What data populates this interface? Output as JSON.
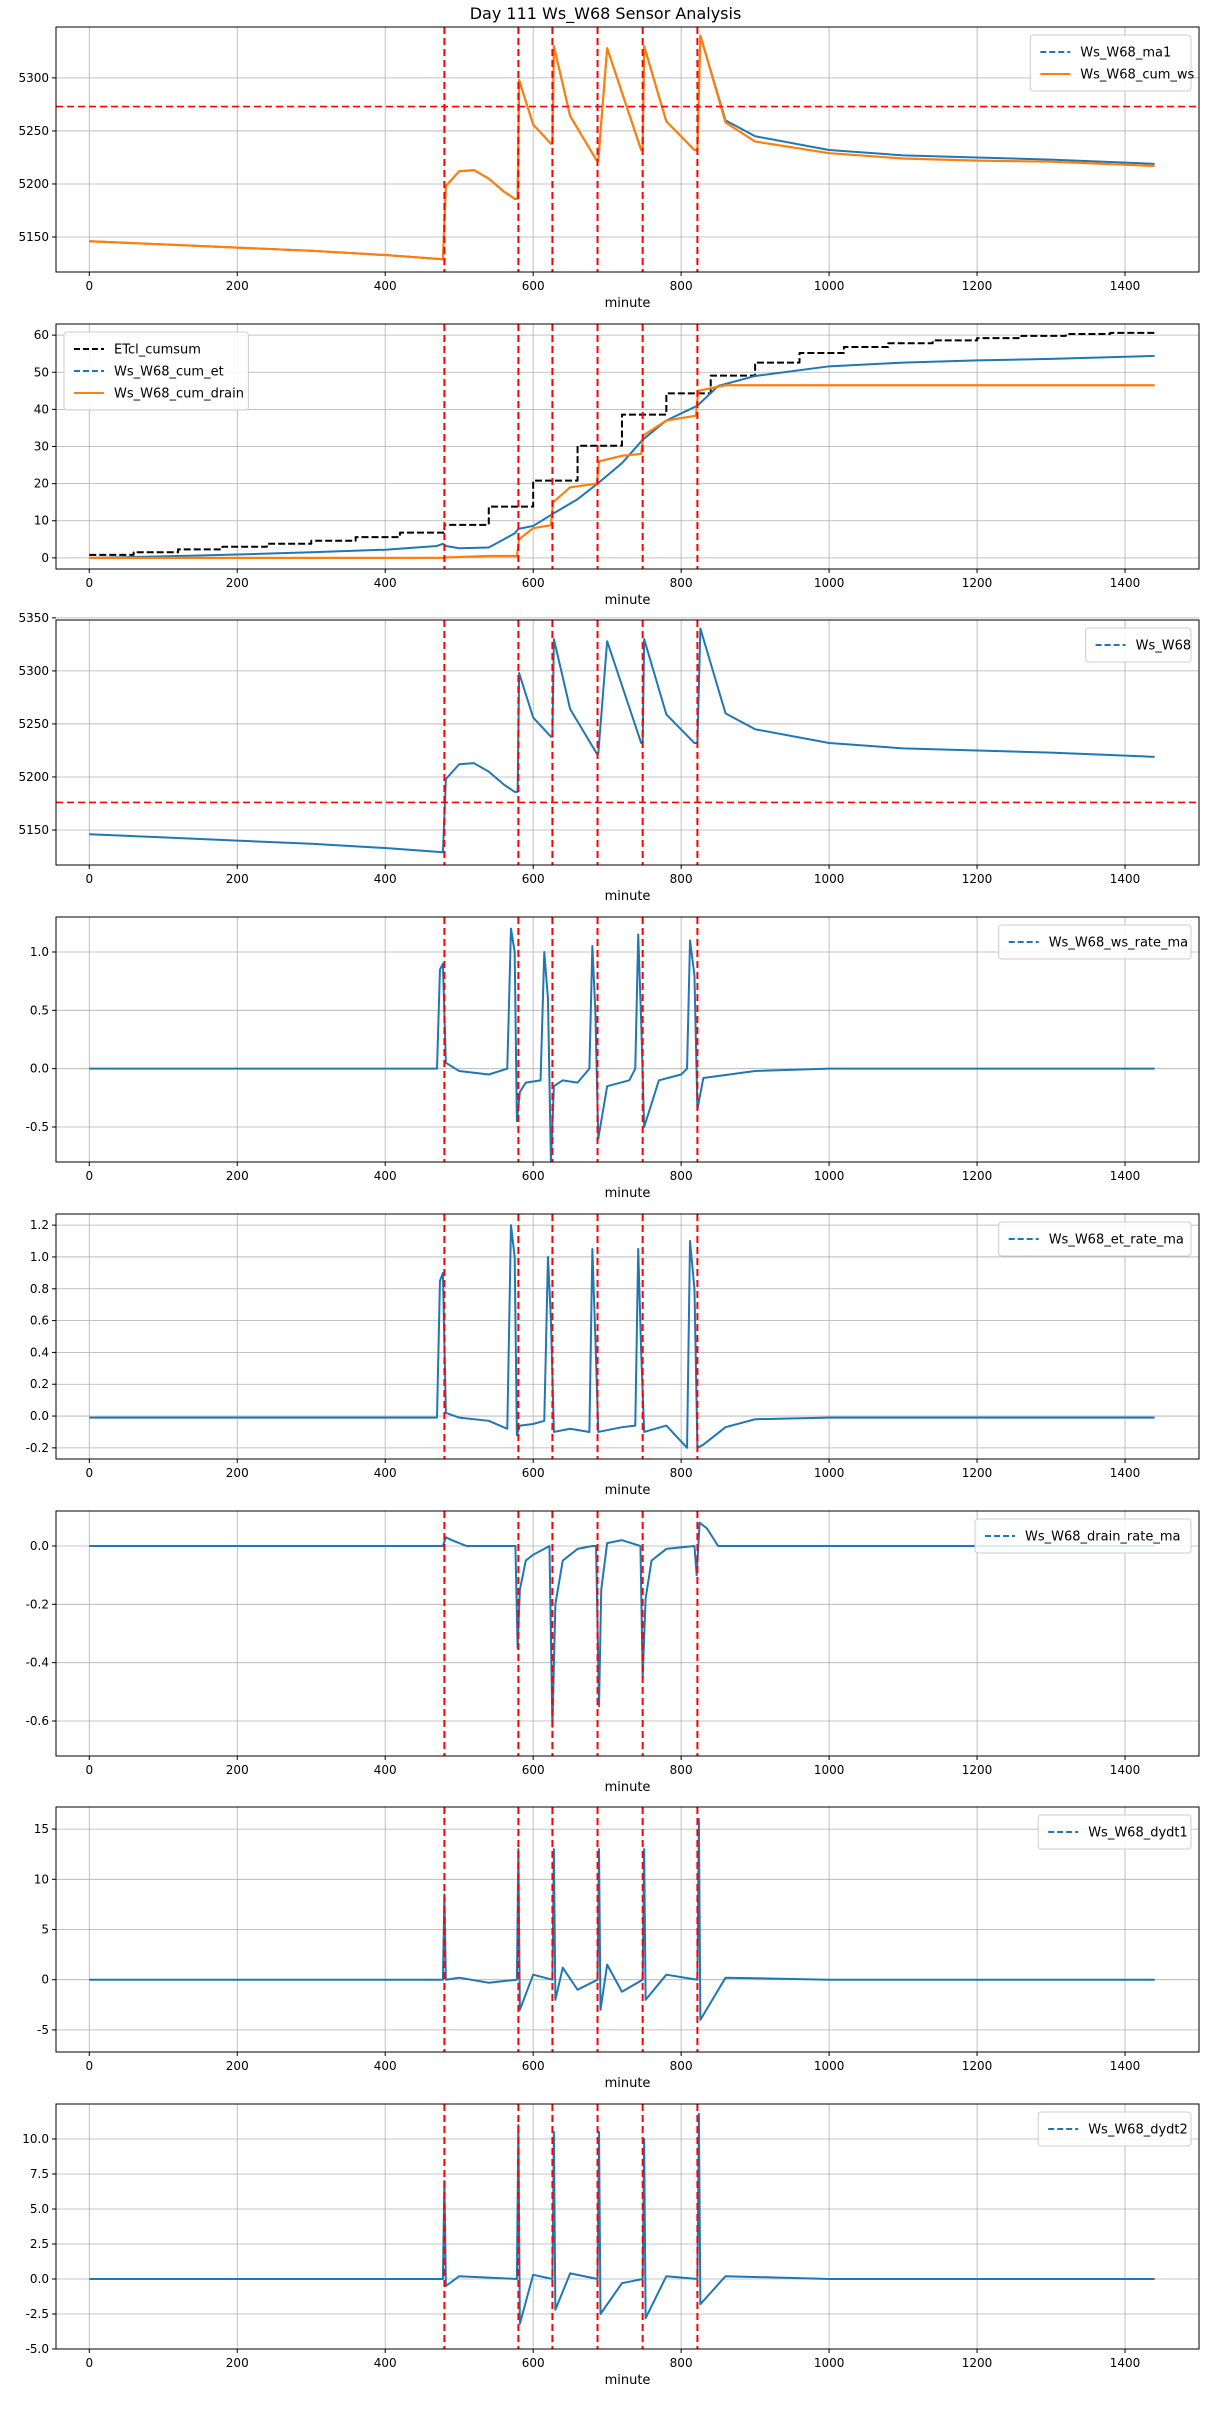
{
  "title": "Day 111 Ws_W68 Sensor Analysis",
  "colors": {
    "blue": "#1f77b4",
    "orange": "#ff7f0e",
    "black": "#000000",
    "red": "#ff0000",
    "grid": "#b0b0b0"
  },
  "event_minutes": [
    480,
    580,
    626,
    687,
    748,
    822
  ],
  "chart_data": [
    {
      "type": "line",
      "title": "",
      "xlabel": "minute",
      "ylabel": "",
      "xlim": [
        -45,
        1500
      ],
      "ylim": [
        5117,
        5348
      ],
      "xticks": [
        0,
        200,
        400,
        600,
        800,
        1000,
        1200,
        1400
      ],
      "yticks": [
        5150,
        5200,
        5250,
        5300
      ],
      "ytick_labels": [
        "5150",
        "5200",
        "5250",
        "5300"
      ],
      "legend_position": "top-right",
      "hline": 5273,
      "series": [
        {
          "name": "Ws_W68_ma1",
          "color": "#1f77b4",
          "style": "dashed",
          "x": [
            0,
            100,
            200,
            300,
            400,
            478,
            482,
            500,
            520,
            540,
            560,
            575,
            579,
            581,
            600,
            624,
            626,
            628,
            650,
            686,
            688,
            700,
            746,
            748,
            750,
            780,
            818,
            822,
            826,
            860,
            900,
            1000,
            1100,
            1200,
            1300,
            1440
          ],
          "y": [
            5146,
            5143,
            5140,
            5137,
            5133,
            5129,
            5198,
            5212,
            5213,
            5205,
            5193,
            5186,
            5186,
            5298,
            5256,
            5238,
            5238,
            5330,
            5264,
            5222,
            5222,
            5328,
            5232,
            5232,
            5330,
            5259,
            5232,
            5232,
            5340,
            5260,
            5245,
            5232,
            5227,
            5225,
            5223,
            5219
          ]
        },
        {
          "name": "Ws_W68_cum_ws",
          "color": "#ff7f0e",
          "style": "solid",
          "x": [
            0,
            100,
            200,
            300,
            400,
            478,
            482,
            500,
            520,
            540,
            560,
            575,
            579,
            581,
            600,
            624,
            626,
            628,
            650,
            686,
            688,
            700,
            746,
            748,
            750,
            780,
            818,
            822,
            826,
            860,
            900,
            1000,
            1100,
            1200,
            1300,
            1440
          ],
          "y": [
            5146,
            5143,
            5140,
            5137,
            5133,
            5129,
            5198,
            5212,
            5213,
            5205,
            5193,
            5186,
            5186,
            5298,
            5256,
            5238,
            5238,
            5330,
            5264,
            5222,
            5222,
            5328,
            5232,
            5232,
            5330,
            5259,
            5232,
            5232,
            5340,
            5258,
            5240,
            5229,
            5224,
            5222,
            5221,
            5217
          ]
        }
      ]
    },
    {
      "type": "line",
      "title": "",
      "xlabel": "minute",
      "ylabel": "",
      "xlim": [
        -45,
        1500
      ],
      "ylim": [
        -3,
        63
      ],
      "xticks": [
        0,
        200,
        400,
        600,
        800,
        1000,
        1200,
        1400
      ],
      "yticks": [
        0,
        10,
        20,
        30,
        40,
        50,
        60
      ],
      "ytick_labels": [
        "0",
        "10",
        "20",
        "30",
        "40",
        "50",
        "60"
      ],
      "legend_position": "top-left",
      "step_series": "ETcl_cumsum",
      "series": [
        {
          "name": "ETcl_cumsum",
          "color": "#000000",
          "style": "dashed",
          "x": [
            0,
            60,
            120,
            180,
            240,
            300,
            360,
            420,
            480,
            540,
            600,
            660,
            720,
            780,
            840,
            900,
            960,
            1020,
            1080,
            1140,
            1200,
            1260,
            1320,
            1380,
            1440
          ],
          "y": [
            0.8,
            1.5,
            2.3,
            3.0,
            3.8,
            4.6,
            5.6,
            6.8,
            8.9,
            13.8,
            20.8,
            30.2,
            38.6,
            44.3,
            49.1,
            52.6,
            55.2,
            56.8,
            57.8,
            58.6,
            59.2,
            59.8,
            60.3,
            60.6,
            61.0
          ]
        },
        {
          "name": "Ws_W68_cum_et",
          "color": "#1f77b4",
          "style": "dashed",
          "x": [
            0,
            100,
            200,
            300,
            400,
            470,
            478,
            482,
            500,
            540,
            575,
            580,
            600,
            626,
            660,
            687,
            720,
            748,
            780,
            822,
            850,
            900,
            1000,
            1100,
            1200,
            1300,
            1440
          ],
          "y": [
            0,
            0.4,
            0.9,
            1.5,
            2.2,
            3.2,
            3.8,
            3.2,
            2.6,
            2.8,
            6.6,
            7.8,
            8.6,
            11.8,
            15.8,
            20.0,
            25.5,
            31.8,
            37.0,
            41.0,
            46.3,
            49.0,
            51.6,
            52.6,
            53.2,
            53.6,
            54.4
          ]
        },
        {
          "name": "Ws_W68_cum_drain",
          "color": "#ff7f0e",
          "style": "solid",
          "x": [
            0,
            478,
            480,
            540,
            578,
            581,
            600,
            624,
            627,
            650,
            686,
            689,
            720,
            746,
            749,
            780,
            820,
            823,
            860,
            1000,
            1200,
            1440
          ],
          "y": [
            0,
            0,
            0.1,
            0.5,
            0.5,
            5.0,
            8.0,
            8.8,
            15.0,
            19.0,
            20.0,
            26.0,
            27.5,
            28.0,
            33.0,
            37.0,
            38.3,
            45.0,
            46.5,
            46.5,
            46.5,
            46.5
          ]
        }
      ]
    },
    {
      "type": "line",
      "title": "",
      "xlabel": "minute",
      "ylabel": "",
      "xlim": [
        -45,
        1500
      ],
      "ylim": [
        5117,
        5348
      ],
      "xticks": [
        0,
        200,
        400,
        600,
        800,
        1000,
        1200,
        1400
      ],
      "yticks": [
        5150,
        5200,
        5250,
        5300,
        5350
      ],
      "ytick_labels": [
        "5150",
        "5200",
        "5250",
        "5300",
        "5350"
      ],
      "legend_position": "top-right",
      "hline": 5176,
      "series": [
        {
          "name": "Ws_W68",
          "color": "#1f77b4",
          "style": "dashed",
          "x": [
            0,
            100,
            200,
            300,
            400,
            478,
            482,
            500,
            520,
            540,
            560,
            575,
            579,
            581,
            600,
            624,
            626,
            628,
            650,
            686,
            688,
            700,
            746,
            748,
            750,
            780,
            818,
            822,
            826,
            860,
            900,
            1000,
            1100,
            1200,
            1300,
            1440
          ],
          "y": [
            5146,
            5143,
            5140,
            5137,
            5133,
            5129,
            5198,
            5212,
            5213,
            5205,
            5193,
            5186,
            5186,
            5298,
            5256,
            5238,
            5238,
            5330,
            5264,
            5222,
            5222,
            5328,
            5232,
            5232,
            5330,
            5259,
            5232,
            5232,
            5340,
            5260,
            5245,
            5232,
            5227,
            5225,
            5223,
            5219
          ]
        }
      ]
    },
    {
      "type": "line",
      "title": "",
      "xlabel": "minute",
      "ylabel": "",
      "xlim": [
        -45,
        1500
      ],
      "ylim": [
        -0.8,
        1.3
      ],
      "xticks": [
        0,
        200,
        400,
        600,
        800,
        1000,
        1200,
        1400
      ],
      "yticks": [
        -0.5,
        0.0,
        0.5,
        1.0
      ],
      "ytick_labels": [
        "-0.5",
        "0.0",
        "0.5",
        "1.0"
      ],
      "legend_position": "top-right",
      "series": [
        {
          "name": "Ws_W68_ws_rate_ma",
          "color": "#1f77b4",
          "style": "dashed",
          "x": [
            0,
            200,
            400,
            470,
            474,
            478,
            482,
            500,
            540,
            565,
            570,
            575,
            578,
            582,
            590,
            610,
            615,
            620,
            624,
            628,
            640,
            660,
            676,
            680,
            684,
            688,
            700,
            730,
            738,
            742,
            746,
            750,
            770,
            800,
            808,
            812,
            818,
            822,
            830,
            900,
            1000,
            1200,
            1440
          ],
          "y": [
            0,
            0,
            0,
            0,
            0.85,
            0.9,
            0.05,
            -0.02,
            -0.05,
            0,
            1.2,
            1.0,
            -0.45,
            -0.2,
            -0.12,
            -0.1,
            1.0,
            0.6,
            -0.8,
            -0.15,
            -0.1,
            -0.12,
            0,
            1.05,
            0.5,
            -0.6,
            -0.15,
            -0.1,
            0,
            1.15,
            0.4,
            -0.5,
            -0.1,
            -0.05,
            0,
            1.1,
            0.8,
            -0.35,
            -0.08,
            -0.02,
            0,
            0,
            0
          ]
        }
      ]
    },
    {
      "type": "line",
      "title": "",
      "xlabel": "minute",
      "ylabel": "",
      "xlim": [
        -45,
        1500
      ],
      "ylim": [
        -0.27,
        1.27
      ],
      "xticks": [
        0,
        200,
        400,
        600,
        800,
        1000,
        1200,
        1400
      ],
      "yticks": [
        -0.2,
        0.0,
        0.2,
        0.4,
        0.6,
        0.8,
        1.0,
        1.2
      ],
      "ytick_labels": [
        "-0.2",
        "0.0",
        "0.2",
        "0.4",
        "0.6",
        "0.8",
        "1.0",
        "1.2"
      ],
      "legend_position": "top-right",
      "series": [
        {
          "name": "Ws_W68_et_rate_ma",
          "color": "#1f77b4",
          "style": "dashed",
          "x": [
            0,
            200,
            400,
            470,
            474,
            478,
            482,
            500,
            540,
            565,
            570,
            575,
            578,
            582,
            600,
            615,
            620,
            624,
            628,
            650,
            676,
            680,
            684,
            688,
            720,
            738,
            742,
            746,
            750,
            780,
            808,
            812,
            818,
            822,
            830,
            860,
            900,
            1000,
            1200,
            1440
          ],
          "y": [
            -0.01,
            -0.01,
            -0.01,
            -0.01,
            0.85,
            0.9,
            0.02,
            -0.01,
            -0.03,
            -0.08,
            1.2,
            1.0,
            -0.12,
            -0.06,
            -0.05,
            -0.03,
            1.0,
            0.6,
            -0.1,
            -0.08,
            -0.1,
            1.05,
            0.5,
            -0.1,
            -0.07,
            -0.06,
            1.05,
            0.4,
            -0.1,
            -0.06,
            -0.2,
            1.1,
            0.8,
            -0.2,
            -0.18,
            -0.07,
            -0.02,
            -0.01,
            -0.01,
            -0.01
          ]
        }
      ]
    },
    {
      "type": "line",
      "title": "",
      "xlabel": "minute",
      "ylabel": "",
      "xlim": [
        -45,
        1500
      ],
      "ylim": [
        -0.72,
        0.12
      ],
      "xticks": [
        0,
        200,
        400,
        600,
        800,
        1000,
        1200,
        1400
      ],
      "yticks": [
        -0.6,
        -0.4,
        -0.2,
        0.0
      ],
      "ytick_labels": [
        "-0.6",
        "-0.4",
        "-0.2",
        "0.0"
      ],
      "legend_position": "top-right",
      "series": [
        {
          "name": "Ws_W68_drain_rate_ma",
          "color": "#1f77b4",
          "style": "dashed",
          "x": [
            0,
            200,
            400,
            478,
            482,
            490,
            500,
            510,
            576,
            579,
            582,
            590,
            600,
            615,
            622,
            626,
            630,
            640,
            660,
            680,
            685,
            689,
            692,
            700,
            720,
            745,
            748,
            752,
            760,
            780,
            818,
            821,
            825,
            835,
            850,
            1000,
            1200,
            1440
          ],
          "y": [
            0,
            0,
            0,
            0,
            0.03,
            0.02,
            0.01,
            0,
            0,
            -0.35,
            -0.15,
            -0.05,
            -0.03,
            -0.01,
            0,
            -0.62,
            -0.2,
            -0.05,
            -0.01,
            0,
            0,
            -0.55,
            -0.15,
            0.01,
            0.02,
            0,
            -0.45,
            -0.18,
            -0.05,
            -0.01,
            0,
            -0.1,
            0.08,
            0.06,
            0,
            0,
            0,
            0
          ]
        }
      ]
    },
    {
      "type": "line",
      "title": "",
      "xlabel": "minute",
      "ylabel": "",
      "xlim": [
        -45,
        1500
      ],
      "ylim": [
        -7.2,
        17.2
      ],
      "xticks": [
        0,
        200,
        400,
        600,
        800,
        1000,
        1200,
        1400
      ],
      "yticks": [
        -5,
        0,
        5,
        10,
        15
      ],
      "ytick_labels": [
        "-5",
        "0",
        "5",
        "10",
        "15"
      ],
      "legend_position": "top-right",
      "series": [
        {
          "name": "Ws_W68_dydt1",
          "color": "#1f77b4",
          "style": "dashed",
          "x": [
            0,
            200,
            400,
            478,
            480,
            482,
            500,
            540,
            578,
            580,
            582,
            600,
            626,
            628,
            630,
            640,
            660,
            687,
            689,
            691,
            700,
            720,
            748,
            750,
            752,
            780,
            822,
            824,
            826,
            860,
            1000,
            1200,
            1440
          ],
          "y": [
            0,
            0,
            0,
            0,
            8.5,
            0,
            0.2,
            -0.3,
            0,
            13,
            -3,
            0.5,
            0,
            13,
            -2,
            1.2,
            -1,
            0,
            13,
            -3,
            1.5,
            -1.2,
            0,
            13,
            -2,
            0.5,
            0,
            16,
            -4,
            0.2,
            0,
            0,
            0
          ]
        }
      ]
    },
    {
      "type": "line",
      "title": "",
      "xlabel": "minute",
      "ylabel": "",
      "xlim": [
        -45,
        1500
      ],
      "ylim": [
        -5.0,
        12.5
      ],
      "xticks": [
        0,
        200,
        400,
        600,
        800,
        1000,
        1200,
        1400
      ],
      "yticks": [
        -5.0,
        -2.5,
        0.0,
        2.5,
        5.0,
        7.5,
        10.0
      ],
      "ytick_labels": [
        "-5.0",
        "-2.5",
        "0.0",
        "2.5",
        "5.0",
        "7.5",
        "10.0"
      ],
      "legend_position": "top-right",
      "series": [
        {
          "name": "Ws_W68_dydt2",
          "color": "#1f77b4",
          "style": "dashed",
          "x": [
            0,
            200,
            400,
            478,
            480,
            482,
            500,
            540,
            578,
            580,
            582,
            600,
            626,
            628,
            630,
            650,
            687,
            689,
            691,
            720,
            748,
            750,
            752,
            780,
            822,
            824,
            826,
            860,
            1000,
            1200,
            1440
          ],
          "y": [
            0,
            0,
            0,
            0,
            7.0,
            -0.5,
            0.2,
            0.1,
            0,
            11.0,
            -3.2,
            0.3,
            0,
            10.5,
            -2.2,
            0.4,
            0,
            10.5,
            -2.5,
            -0.3,
            0,
            10.0,
            -2.8,
            0.2,
            0,
            11.8,
            -1.8,
            0.2,
            0,
            0,
            0
          ]
        }
      ]
    }
  ]
}
